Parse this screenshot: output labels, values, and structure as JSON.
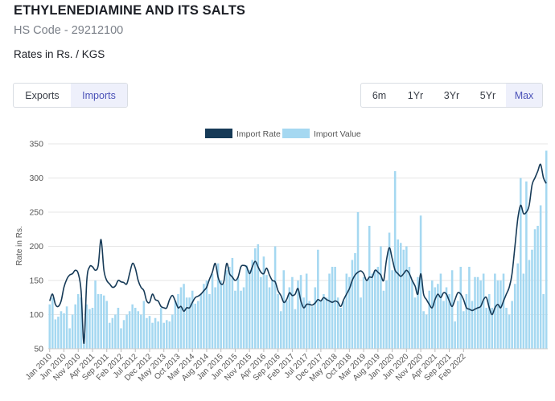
{
  "header": {
    "title": "ETHYLENEDIAMINE AND ITS SALTS",
    "hs_code": "HS Code - 29212100",
    "rates_label": "Rates in Rs. / KGS"
  },
  "trade_toggle": {
    "options": [
      {
        "label": "Exports",
        "active": false
      },
      {
        "label": "Imports",
        "active": true
      }
    ]
  },
  "range_toggle": {
    "options": [
      {
        "label": "6m",
        "active": false
      },
      {
        "label": "1Yr",
        "active": false
      },
      {
        "label": "3Yr",
        "active": false
      },
      {
        "label": "5Yr",
        "active": false
      },
      {
        "label": "Max",
        "active": true
      }
    ]
  },
  "colors": {
    "import_rate": "#163a57",
    "import_value": "#a5d8f1",
    "active_bg": "#eef0fb",
    "active_text": "#4b52b8",
    "grid": "#e6e6e6"
  },
  "chart_data": {
    "type": "bar",
    "ylabel": "Rate in Rs.",
    "ylim": [
      50,
      350
    ],
    "yticks": [
      50,
      100,
      150,
      200,
      250,
      300,
      350
    ],
    "grid": true,
    "legend_position": "top-center",
    "legend": [
      {
        "name": "Import Rate",
        "kind": "line"
      },
      {
        "name": "Import Value",
        "kind": "bar"
      }
    ],
    "x_start": "Jan 2010",
    "tick_labels": [
      "Jan 2010",
      "Jun 2010",
      "Nov 2010",
      "Apr 2011",
      "Sep 2011",
      "Feb 2012",
      "Jul 2012",
      "Dec 2012",
      "May 2013",
      "Oct 2013",
      "Mar 2014",
      "Aug 2014",
      "Jan 2015",
      "Jun 2015",
      "Nov 2015",
      "Apr 2016",
      "Sep 2016",
      "Feb 2017",
      "Jul 2017",
      "Dec 2017",
      "May 2018",
      "Oct 2018",
      "Mar 2019",
      "Aug 2019",
      "Jan 2020",
      "Jun 2020",
      "Nov 2020",
      "Apr 2021",
      "Sep 2021",
      "Feb 2022"
    ],
    "series": [
      {
        "name": "Import Value",
        "type": "bar",
        "values": [
          115,
          125,
          93,
          97,
          105,
          102,
          112,
          80,
          100,
          115,
          130,
          125,
          72,
          115,
          108,
          110,
          150,
          130,
          130,
          128,
          120,
          88,
          95,
          100,
          110,
          80,
          92,
          100,
          105,
          115,
          110,
          105,
          100,
          120,
          95,
          98,
          88,
          95,
          90,
          110,
          88,
          92,
          90,
          100,
          120,
          130,
          140,
          145,
          125,
          125,
          135,
          116,
          120,
          130,
          145,
          150,
          130,
          160,
          140,
          175,
          150,
          145,
          165,
          170,
          183,
          135,
          155,
          135,
          140,
          172,
          165,
          180,
          197,
          203,
          155,
          185,
          158,
          140,
          150,
          200,
          130,
          105,
          165,
          120,
          140,
          155,
          108,
          150,
          158,
          125,
          160,
          120,
          112,
          140,
          195,
          120,
          130,
          125,
          160,
          170,
          170,
          125,
          110,
          120,
          160,
          155,
          180,
          190,
          250,
          125,
          155,
          150,
          230,
          160,
          165,
          170,
          200,
          135,
          150,
          220,
          165,
          310,
          210,
          205,
          195,
          200,
          170,
          150,
          125,
          155,
          245,
          105,
          100,
          135,
          150,
          140,
          145,
          160,
          120,
          140,
          130,
          165,
          90,
          120,
          170,
          105,
          130,
          170,
          120,
          155,
          155,
          150,
          160,
          110,
          130,
          110,
          160,
          150,
          150,
          160,
          110,
          100,
          120,
          145,
          175,
          300,
          160,
          295,
          180,
          195,
          225,
          230,
          260,
          130,
          340
        ]
      },
      {
        "name": "Import Rate",
        "type": "line",
        "values": [
          120,
          130,
          115,
          112,
          120,
          140,
          152,
          158,
          160,
          165,
          160,
          135,
          58,
          150,
          170,
          170,
          165,
          172,
          210,
          165,
          150,
          145,
          140,
          142,
          150,
          148,
          147,
          145,
          160,
          175,
          168,
          150,
          140,
          135,
          120,
          118,
          130,
          122,
          120,
          112,
          110,
          110,
          122,
          128,
          120,
          110,
          112,
          105,
          110,
          110,
          118,
          125,
          127,
          130,
          135,
          140,
          152,
          162,
          175,
          155,
          145,
          148,
          175,
          160,
          155,
          150,
          155,
          170,
          172,
          170,
          160,
          170,
          178,
          170,
          162,
          160,
          168,
          158,
          150,
          148,
          135,
          128,
          118,
          122,
          132,
          128,
          130,
          138,
          120,
          110,
          115,
          115,
          114,
          117,
          122,
          120,
          125,
          122,
          120,
          118,
          120,
          118,
          112,
          122,
          130,
          138,
          150,
          158,
          162,
          164,
          160,
          150,
          155,
          155,
          165,
          162,
          158,
          150,
          180,
          198,
          182,
          165,
          160,
          156,
          160,
          165,
          160,
          150,
          142,
          130,
          160,
          130,
          122,
          115,
          110,
          122,
          130,
          125,
          132,
          130,
          120,
          112,
          122,
          132,
          130,
          122,
          110,
          108,
          106,
          108,
          110,
          112,
          122,
          125,
          110,
          100,
          110,
          115,
          110,
          120,
          130,
          140,
          160,
          200,
          240,
          260,
          248,
          250,
          260,
          290,
          300,
          310,
          320,
          300,
          292
        ]
      }
    ]
  }
}
